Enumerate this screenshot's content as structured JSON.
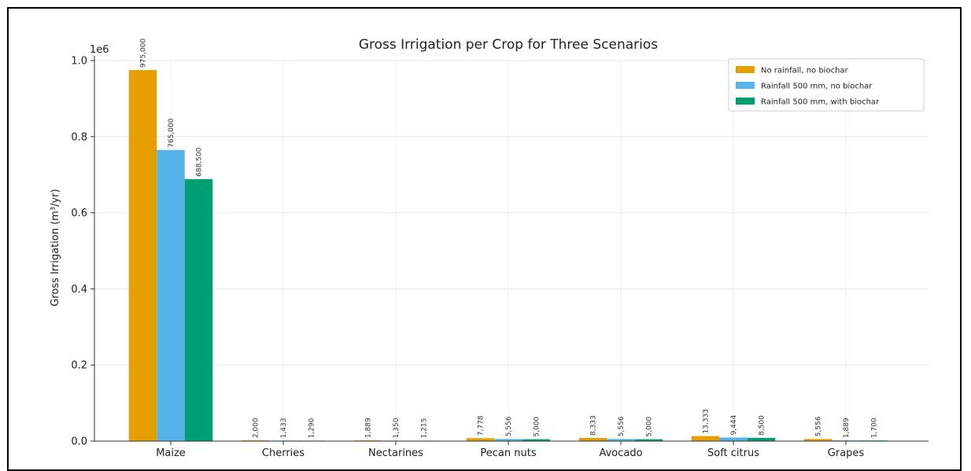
{
  "chart_data": {
    "type": "bar",
    "title": "Gross Irrigation per Crop for Three Scenarios",
    "xlabel": "",
    "ylabel": "Gross Irrigation (m³/yr)",
    "y_multiplier": "1e6",
    "ylim": [
      0,
      1.0
    ],
    "yticks": [
      "0.0",
      "0.2",
      "0.4",
      "0.6",
      "0.8",
      "1.0"
    ],
    "grid": true,
    "legend_position": "top-right",
    "categories": [
      "Maize",
      "Cherries",
      "Nectarines",
      "Pecan nuts",
      "Avocado",
      "Soft citrus",
      "Grapes"
    ],
    "series": [
      {
        "name": "No rainfall, no biochar",
        "color": "#E69F00",
        "values": [
          975000,
          2000,
          1889,
          7778,
          8333,
          13333,
          5556
        ],
        "labels": [
          "975,000",
          "2,000",
          "1,889",
          "7,778",
          "8,333",
          "13,333",
          "5,556"
        ]
      },
      {
        "name": "Rainfall 500 mm, no biochar",
        "color": "#56B4E9",
        "values": [
          765000,
          1433,
          1350,
          5556,
          5556,
          9444,
          1889
        ],
        "labels": [
          "765,000",
          "1,433",
          "1,350",
          "5,556",
          "5,556",
          "9,444",
          "1,889"
        ]
      },
      {
        "name": "Rainfall 500 mm, with biochar",
        "color": "#009E73",
        "values": [
          688500,
          1290,
          1215,
          5000,
          5000,
          8500,
          1700
        ],
        "labels": [
          "688,500",
          "1,290",
          "1,215",
          "5,000",
          "5,000",
          "8,500",
          "1,700"
        ]
      }
    ]
  }
}
